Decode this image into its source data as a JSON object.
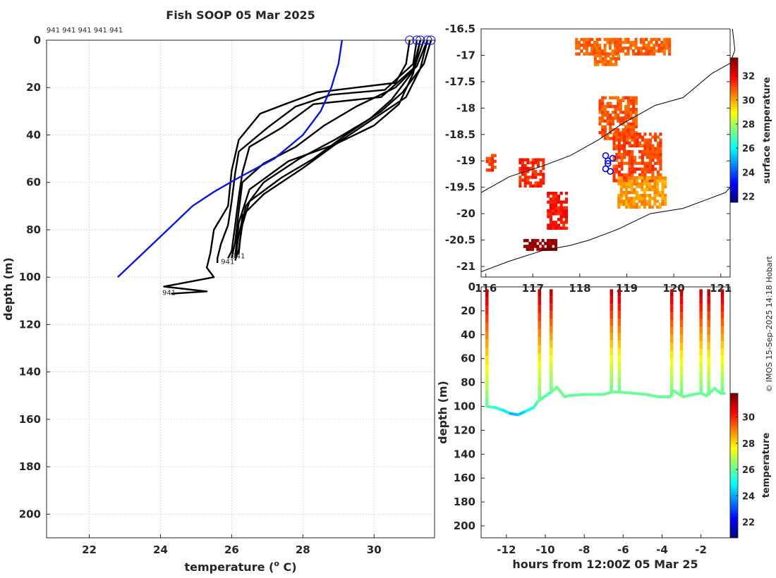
{
  "title": "Fish SOOP 05 Mar 2025",
  "credit": "© IMOS 15-Sep-2025 14:18 Hobart",
  "colors": {
    "profile_line": "#000000",
    "climatology_line": "#0a14e6",
    "marker": "#0000ff",
    "grid": "#d4d4d4",
    "axis": "#262626"
  },
  "chart_data": [
    {
      "id": "profiles",
      "type": "line",
      "xlabel": "temperature (° C)",
      "xlabel_main": "temperature (",
      "xlabel_sup": "o",
      "xlabel_end": " C)",
      "ylabel": "depth (m)",
      "xlim": [
        20.8,
        31.7
      ],
      "ylim": [
        210,
        0
      ],
      "xticks": [
        "22",
        "24",
        "26",
        "28",
        "30"
      ],
      "yticks": [
        "0",
        "20",
        "40",
        "60",
        "80",
        "100",
        "120",
        "140",
        "160",
        "180",
        "200"
      ],
      "ytick_values": [
        0,
        20,
        40,
        60,
        80,
        100,
        120,
        140,
        160,
        180,
        200
      ],
      "xtick_values": [
        22,
        24,
        26,
        28,
        30
      ],
      "platform_labels": "941 941 941 941 941",
      "end_labels": [
        "941",
        "941",
        "941"
      ],
      "climatology": {
        "name": "climatology",
        "temperature": [
          29.1,
          29.05,
          29.0,
          28.9,
          28.8,
          28.5,
          28.0,
          27.2,
          26.2,
          25.5,
          24.9,
          24.2,
          23.5,
          22.8
        ],
        "depth": [
          0,
          5,
          10,
          15,
          20,
          30,
          40,
          50,
          58,
          64,
          70,
          80,
          90,
          100
        ]
      },
      "series": [
        {
          "name": "profile 1",
          "temperature": [
            31.0,
            30.9,
            30.6,
            29.5,
            28.4,
            27.5,
            26.8,
            26.2,
            26.0,
            25.9,
            25.5,
            25.4,
            25.3,
            25.5,
            24.8,
            24.1,
            25.3,
            24.3
          ],
          "depth": [
            0,
            10,
            18,
            20,
            22,
            27,
            31,
            42,
            55,
            70,
            80,
            90,
            96,
            100,
            102,
            104,
            106,
            107
          ]
        },
        {
          "name": "profile 2",
          "temperature": [
            31.2,
            31.1,
            30.3,
            28.8,
            27.8,
            27.0,
            26.2,
            26.1,
            26.0,
            25.9,
            25.7,
            25.6,
            25.6
          ],
          "depth": [
            0,
            10,
            21,
            23,
            28,
            37,
            47,
            56,
            68,
            78,
            86,
            92,
            94
          ]
        },
        {
          "name": "profile 3",
          "temperature": [
            31.3,
            31.1,
            30.2,
            28.3,
            27.4,
            26.5,
            26.3,
            26.2,
            26.1,
            26.0,
            25.9
          ],
          "depth": [
            0,
            12,
            24,
            27,
            37,
            45,
            56,
            66,
            78,
            89,
            92
          ]
        },
        {
          "name": "profile 4",
          "temperature": [
            31.5,
            31.2,
            30.6,
            29.5,
            28.6,
            27.8,
            26.9,
            26.3,
            26.2,
            26.1,
            26.0
          ],
          "depth": [
            0,
            11,
            20,
            28,
            36,
            45,
            52,
            60,
            72,
            85,
            92
          ]
        },
        {
          "name": "profile 5",
          "temperature": [
            31.6,
            31.4,
            30.8,
            30.2,
            29.2,
            28.3,
            27.4,
            26.5,
            26.3,
            26.2,
            26.1
          ],
          "depth": [
            0,
            10,
            22,
            30,
            40,
            50,
            58,
            68,
            78,
            88,
            93
          ]
        },
        {
          "name": "profile 6",
          "temperature": [
            31.4,
            31.1,
            30.5,
            29.9,
            28.9,
            27.9,
            26.9,
            26.4,
            26.2,
            26.1
          ],
          "depth": [
            0,
            13,
            25,
            33,
            42,
            50,
            60,
            70,
            82,
            92
          ]
        },
        {
          "name": "profile 7",
          "temperature": [
            31.3,
            31.1,
            30.7,
            30.0,
            28.9,
            27.6,
            26.5,
            26.2,
            26.1
          ],
          "depth": [
            0,
            14,
            27,
            36,
            44,
            51,
            63,
            77,
            91
          ]
        },
        {
          "name": "profile 8",
          "temperature": [
            31.5,
            31.3,
            30.9,
            30.1,
            29.0,
            28.0,
            26.9,
            26.3,
            26.2
          ],
          "depth": [
            0,
            12,
            24,
            32,
            43,
            54,
            65,
            74,
            90
          ]
        }
      ],
      "surface_markers": [
        31.0,
        31.2,
        31.3,
        31.5,
        31.6
      ]
    },
    {
      "id": "map",
      "type": "heatmap",
      "xlim": [
        115.9,
        121.2
      ],
      "ylim": [
        -21.2,
        -16.5
      ],
      "yticks": [
        "-16.5",
        "-17",
        "-17.5",
        "-18",
        "-18.5",
        "-19",
        "-19.5",
        "-20",
        "-20.5",
        "-21"
      ],
      "ytick_values": [
        -16.5,
        -17,
        -17.5,
        -18,
        -18.5,
        -19,
        -19.5,
        -20,
        -20.5,
        -21
      ],
      "xticks": [
        "116",
        "117",
        "118",
        "119",
        "120",
        "121"
      ],
      "xtick_values": [
        116,
        117,
        118,
        119,
        120,
        121
      ],
      "colorbar_label": "surface temperature",
      "colorbar_ticks": [
        "22",
        "24",
        "26",
        "28",
        "30",
        "32"
      ],
      "colorbar_tick_values": [
        22,
        24,
        26,
        28,
        30,
        32
      ],
      "colorbar_range": [
        21.5,
        33.5
      ],
      "patches": [
        {
          "lon": [
            117.9,
            119.9
          ],
          "lat": [
            -16.7,
            -17.0
          ],
          "sst": 30.9
        },
        {
          "lon": [
            118.3,
            118.8
          ],
          "lat": [
            -17.0,
            -17.2
          ],
          "sst": 30.8
        },
        {
          "lon": [
            118.4,
            119.2
          ],
          "lat": [
            -17.8,
            -18.6
          ],
          "sst": 31.0
        },
        {
          "lon": [
            118.7,
            119.7
          ],
          "lat": [
            -18.5,
            -19.4
          ],
          "sst": 31.2
        },
        {
          "lon": [
            118.8,
            119.8
          ],
          "lat": [
            -19.3,
            -19.9
          ],
          "sst": 30.2
        },
        {
          "lon": [
            116.0,
            116.2
          ],
          "lat": [
            -18.9,
            -19.2
          ],
          "sst": 31.3
        },
        {
          "lon": [
            116.7,
            117.2
          ],
          "lat": [
            -19.0,
            -19.5
          ],
          "sst": 31.5
        },
        {
          "lon": [
            117.3,
            117.7
          ],
          "lat": [
            -19.6,
            -20.3
          ],
          "sst": 31.8
        },
        {
          "lon": [
            116.8,
            117.5
          ],
          "lat": [
            -20.5,
            -20.7
          ],
          "sst": 33.2
        }
      ],
      "coastline": {
        "lon": [
          115.9,
          116.5,
          117.2,
          117.8,
          118.2,
          118.8,
          119.5,
          120.2,
          120.8,
          121.1,
          121.2
        ],
        "lat": [
          -21.1,
          -20.9,
          -20.7,
          -20.6,
          -20.5,
          -20.3,
          -20.0,
          -19.9,
          -19.7,
          -19.6,
          -19.5
        ]
      },
      "shelf": {
        "lon": [
          115.9,
          116.5,
          117.2,
          117.8,
          118.4,
          118.9,
          119.6,
          120.2,
          120.8,
          121.2,
          121.3,
          121.25
        ],
        "lat": [
          -19.6,
          -19.3,
          -19.1,
          -18.9,
          -18.6,
          -18.3,
          -17.95,
          -17.8,
          -17.35,
          -17.15,
          -16.9,
          -16.5
        ]
      },
      "track": {
        "lon": [
          118.55,
          118.6,
          118.55,
          118.65,
          118.7,
          118.6
        ],
        "lat": [
          -18.9,
          -19.05,
          -19.15,
          -19.2,
          -18.95,
          -19.0
        ]
      }
    },
    {
      "id": "section",
      "type": "line",
      "ylabel": "depth (m)",
      "xlabel": "hours from 12:00Z 05 Mar 25",
      "xlim": [
        -13.3,
        -0.5
      ],
      "ylim": [
        210,
        0
      ],
      "xticks": [
        "-12",
        "-10",
        "-8",
        "-6",
        "-4",
        "-2"
      ],
      "xtick_values": [
        -12,
        -10,
        -8,
        -6,
        -4,
        -2
      ],
      "yticks": [
        "0",
        "20",
        "40",
        "60",
        "80",
        "100",
        "120",
        "140",
        "160",
        "180",
        "200"
      ],
      "ytick_values": [
        0,
        20,
        40,
        60,
        80,
        100,
        120,
        140,
        160,
        180,
        200
      ],
      "colorbar_label": "temperature",
      "colorbar_ticks": [
        "22",
        "24",
        "26",
        "28",
        "30"
      ],
      "colorbar_tick_values": [
        22,
        24,
        26,
        28,
        30
      ],
      "colorbar_range": [
        20.8,
        31.8
      ],
      "bottom_trace": {
        "hours": [
          -13.0,
          -12.6,
          -12.2,
          -11.8,
          -11.4,
          -11.0,
          -10.6,
          -10.4,
          -9.7,
          -9.4,
          -9.0,
          -8.8,
          -8.0,
          -7.0,
          -6.6,
          -6.2,
          -5.5,
          -4.8,
          -4.2,
          -3.6,
          -3.4,
          -2.9,
          -2.4,
          -2.0,
          -1.7,
          -1.3,
          -1.0,
          -0.8
        ],
        "depth": [
          100,
          101,
          103,
          106,
          107,
          104,
          101,
          96,
          88,
          84,
          92,
          91,
          90,
          90,
          88,
          88,
          89,
          90,
          92,
          92,
          87,
          92,
          90,
          89,
          91,
          85,
          89,
          89
        ],
        "temperature": [
          25.8,
          25.6,
          25.2,
          24.4,
          24.0,
          24.8,
          25.4,
          25.7,
          26.0,
          26.2,
          26.0,
          26.0,
          26.0,
          26.0,
          26.1,
          26.1,
          26.1,
          26.0,
          26.0,
          26.0,
          26.1,
          26.0,
          26.0,
          26.1,
          26.0,
          26.1,
          26.0,
          26.0
        ]
      },
      "casts": [
        -13.0,
        -10.3,
        -9.7,
        -6.6,
        -6.2,
        -3.5,
        -3.0,
        -2.0,
        -1.6,
        -0.9
      ]
    }
  ]
}
